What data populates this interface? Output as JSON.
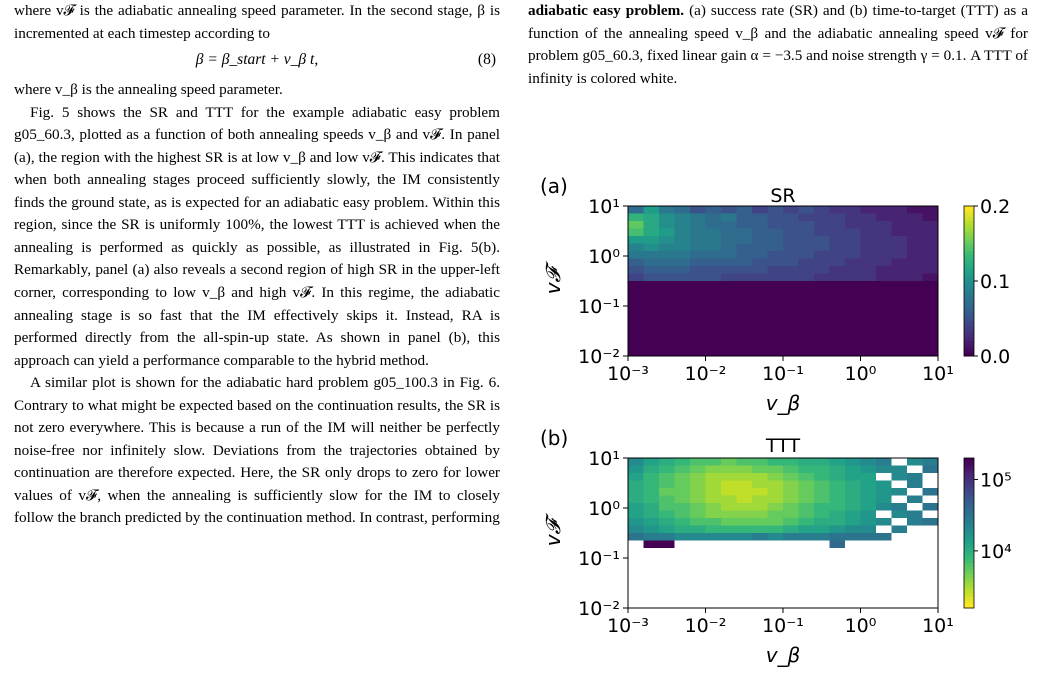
{
  "left_column": {
    "p1": "where v𝓕 is the adiabatic annealing speed parameter. In the second stage, β is incremented at each timestep according to",
    "equation": "β = β_start + v_β t,",
    "equation_number": "(8)",
    "p2": "where v_β is the annealing speed parameter.",
    "p3": "Fig. 5 shows the SR and TTT for the example adiabatic easy problem g05_60.3, plotted as a function of both annealing speeds v_β and v𝓕. In panel (a), the region with the highest SR is at low v_β and low v𝓕. This indicates that when both annealing stages proceed sufficiently slowly, the IM consistently finds the ground state, as is expected for an adiabatic easy problem. Within this region, since the SR is uniformly 100%, the lowest TTT is achieved when the annealing is performed as quickly as possible, as illustrated in Fig. 5(b). Remarkably, panel (a) also reveals a second region of high SR in the upper-left corner, corresponding to low v_β and high v𝓕. In this regime, the adiabatic annealing stage is so fast that the IM effectively skips it. Instead, RA is performed directly from the all-spin-up state. As shown in panel (b), this approach can yield a performance comparable to the hybrid method.",
    "p4": "A similar plot is shown for the adiabatic hard problem g05_100.3 in Fig. 6. Contrary to what might be expected based on the continuation results, the SR is not zero everywhere. This is because a run of the IM will neither be perfectly noise-free nor infinitely slow. Deviations from the trajectories obtained by continuation are therefore expected. Here, the SR only drops to zero for lower values of v𝓕, when the annealing is sufficiently slow for the IM to closely follow the branch predicted by the continuation method. In contrast, performing"
  },
  "caption": {
    "bold_lead": "adiabatic easy problem.",
    "text": " (a) success rate (SR) and (b) time-to-target (TTT) as a function of the annealing speed v_β and the adiabatic annealing speed v𝓕 for problem g05_60.3, fixed linear gain α = −3.5 and noise strength γ = 0.1. A TTT of infinity is colored white."
  },
  "figure": {
    "panel_a": {
      "tag": "(a)",
      "title": "SR",
      "ylabel": "v𝓕",
      "xlabel": "v_β",
      "colorbar_ticks": [
        "0.2",
        "0.1",
        "0.0"
      ]
    },
    "panel_b": {
      "tag": "(b)",
      "title": "TTT",
      "ylabel": "v𝓕",
      "xlabel": "v_β",
      "colorbar_ticks": [
        "10⁵",
        "10⁴"
      ]
    },
    "x_ticks": [
      "10⁻³",
      "10⁻²",
      "10⁻¹",
      "10⁰",
      "10¹"
    ],
    "y_ticks": [
      "10¹",
      "10⁰",
      "10⁻¹",
      "10⁻²"
    ]
  },
  "chart_data": [
    {
      "type": "heatmap",
      "title": "SR",
      "xlabel": "v_β",
      "ylabel": "v𝓕",
      "x_scale": "log",
      "y_scale": "log",
      "xlim": [
        0.001,
        10
      ],
      "ylim": [
        0.01,
        10
      ],
      "x_ticks": [
        0.001,
        0.01,
        0.1,
        1,
        10
      ],
      "y_ticks": [
        0.01,
        0.1,
        1,
        10
      ],
      "colorscale": "viridis",
      "color_range": [
        0,
        0.2
      ],
      "grid_size": [
        20,
        20
      ],
      "rows_top_to_bottom": [
        [
          0.07,
          0.11,
          0.08,
          0.07,
          0.05,
          0.06,
          0.05,
          0.06,
          0.04,
          0.05,
          0.04,
          0.05,
          0.04,
          0.03,
          0.03,
          0.02,
          0.02,
          0.02,
          0.01,
          0.01
        ],
        [
          0.13,
          0.12,
          0.1,
          0.09,
          0.08,
          0.07,
          0.08,
          0.06,
          0.06,
          0.05,
          0.05,
          0.04,
          0.04,
          0.04,
          0.03,
          0.03,
          0.02,
          0.02,
          0.02,
          0.01
        ],
        [
          0.15,
          0.12,
          0.1,
          0.09,
          0.08,
          0.07,
          0.07,
          0.06,
          0.06,
          0.05,
          0.05,
          0.05,
          0.04,
          0.04,
          0.03,
          0.03,
          0.03,
          0.02,
          0.02,
          0.02
        ],
        [
          0.14,
          0.12,
          0.11,
          0.09,
          0.08,
          0.08,
          0.07,
          0.07,
          0.06,
          0.06,
          0.05,
          0.05,
          0.04,
          0.04,
          0.04,
          0.03,
          0.03,
          0.02,
          0.02,
          0.02
        ],
        [
          0.11,
          0.11,
          0.1,
          0.09,
          0.08,
          0.08,
          0.07,
          0.07,
          0.06,
          0.06,
          0.05,
          0.05,
          0.05,
          0.04,
          0.04,
          0.03,
          0.03,
          0.03,
          0.02,
          0.02
        ],
        [
          0.09,
          0.1,
          0.09,
          0.09,
          0.08,
          0.08,
          0.07,
          0.06,
          0.06,
          0.06,
          0.05,
          0.05,
          0.05,
          0.04,
          0.04,
          0.03,
          0.03,
          0.03,
          0.02,
          0.02
        ],
        [
          0.08,
          0.08,
          0.08,
          0.08,
          0.07,
          0.07,
          0.07,
          0.06,
          0.06,
          0.05,
          0.05,
          0.05,
          0.04,
          0.04,
          0.04,
          0.03,
          0.03,
          0.03,
          0.02,
          0.02
        ],
        [
          0.06,
          0.07,
          0.07,
          0.07,
          0.06,
          0.06,
          0.06,
          0.06,
          0.05,
          0.05,
          0.05,
          0.04,
          0.04,
          0.04,
          0.03,
          0.03,
          0.03,
          0.02,
          0.02,
          0.02
        ],
        [
          0.05,
          0.06,
          0.06,
          0.06,
          0.05,
          0.05,
          0.05,
          0.05,
          0.05,
          0.04,
          0.04,
          0.04,
          0.04,
          0.03,
          0.03,
          0.03,
          0.02,
          0.02,
          0.02,
          0.02
        ],
        [
          0.04,
          0.05,
          0.05,
          0.05,
          0.05,
          0.05,
          0.04,
          0.04,
          0.04,
          0.04,
          0.04,
          0.04,
          0.03,
          0.03,
          0.03,
          0.03,
          0.02,
          0.02,
          0.02,
          0.01
        ],
        [
          0,
          0,
          0,
          0,
          0,
          0,
          0,
          0,
          0,
          0,
          0,
          0,
          0,
          0,
          0,
          0,
          0,
          0,
          0,
          0
        ],
        [
          0,
          0,
          0,
          0,
          0,
          0,
          0,
          0,
          0,
          0,
          0,
          0,
          0,
          0,
          0,
          0,
          0,
          0,
          0,
          0
        ],
        [
          0,
          0,
          0,
          0,
          0,
          0,
          0,
          0,
          0,
          0,
          0,
          0,
          0,
          0,
          0,
          0,
          0,
          0,
          0,
          0
        ],
        [
          0,
          0,
          0,
          0,
          0,
          0,
          0,
          0,
          0,
          0,
          0,
          0,
          0,
          0,
          0,
          0,
          0,
          0,
          0,
          0
        ],
        [
          0,
          0,
          0,
          0,
          0,
          0,
          0,
          0,
          0,
          0,
          0,
          0,
          0,
          0,
          0,
          0,
          0,
          0,
          0,
          0
        ],
        [
          0,
          0,
          0,
          0,
          0,
          0,
          0,
          0,
          0,
          0,
          0,
          0,
          0,
          0,
          0,
          0,
          0,
          0,
          0,
          0
        ],
        [
          0,
          0,
          0,
          0,
          0,
          0,
          0,
          0,
          0,
          0,
          0,
          0,
          0,
          0,
          0,
          0,
          0,
          0,
          0,
          0
        ],
        [
          0,
          0,
          0,
          0,
          0,
          0,
          0,
          0,
          0,
          0,
          0,
          0,
          0,
          0,
          0,
          0,
          0,
          0,
          0,
          0
        ],
        [
          0,
          0,
          0,
          0,
          0,
          0,
          0,
          0,
          0,
          0,
          0,
          0,
          0,
          0,
          0,
          0,
          0,
          0,
          0,
          0
        ],
        [
          0,
          0,
          0,
          0,
          0,
          0,
          0,
          0,
          0,
          0,
          0,
          0,
          0,
          0,
          0,
          0,
          0,
          0,
          0,
          0
        ]
      ]
    },
    {
      "type": "heatmap",
      "title": "TTT",
      "xlabel": "v_β",
      "ylabel": "v𝓕",
      "x_scale": "log",
      "y_scale": "log",
      "color_scale": "log",
      "xlim": [
        0.001,
        10
      ],
      "ylim": [
        0.01,
        10
      ],
      "x_ticks": [
        0.001,
        0.01,
        0.1,
        1,
        10
      ],
      "y_ticks": [
        0.01,
        0.1,
        1,
        10
      ],
      "colorscale": "viridis_r",
      "color_range_log10": [
        3.2,
        5.3
      ],
      "colorbar_ticks": [
        10000,
        100000
      ],
      "grid_size": [
        20,
        20
      ],
      "note": "null = infinity (white)",
      "log10_rows_top_to_bottom": [
        [
          4.3,
          4.1,
          4.0,
          3.9,
          3.8,
          3.8,
          3.7,
          3.8,
          3.8,
          3.9,
          3.9,
          4.0,
          4.0,
          4.1,
          4.2,
          4.3,
          4.4,
          null,
          4.3,
          4.4
        ],
        [
          4.2,
          4.0,
          3.9,
          3.8,
          3.7,
          3.6,
          3.6,
          3.6,
          3.7,
          3.7,
          3.8,
          3.9,
          3.9,
          4.0,
          4.1,
          4.2,
          4.3,
          4.3,
          null,
          4.5
        ],
        [
          4.1,
          3.9,
          3.8,
          3.7,
          3.6,
          3.5,
          3.5,
          3.5,
          3.5,
          3.6,
          3.7,
          3.8,
          3.9,
          4.0,
          4.1,
          4.1,
          null,
          4.3,
          4.4,
          null
        ],
        [
          4.0,
          3.9,
          3.8,
          3.7,
          3.6,
          3.5,
          3.4,
          3.4,
          3.5,
          3.5,
          3.6,
          3.7,
          3.8,
          3.9,
          4.0,
          4.1,
          4.2,
          null,
          4.4,
          null
        ],
        [
          4.0,
          3.9,
          3.7,
          3.7,
          3.6,
          3.5,
          3.4,
          3.4,
          3.4,
          3.5,
          3.6,
          3.7,
          3.8,
          3.9,
          4.0,
          4.1,
          4.2,
          4.3,
          null,
          4.5
        ],
        [
          4.0,
          3.9,
          3.8,
          3.7,
          3.6,
          3.5,
          3.5,
          3.4,
          3.5,
          3.5,
          3.6,
          3.7,
          3.8,
          3.9,
          4.0,
          4.1,
          4.2,
          null,
          4.4,
          null
        ],
        [
          4.1,
          4.0,
          3.8,
          3.8,
          3.7,
          3.6,
          3.5,
          3.5,
          3.5,
          3.6,
          3.7,
          3.8,
          3.9,
          3.9,
          4.0,
          4.1,
          4.3,
          4.4,
          null,
          4.5
        ],
        [
          4.1,
          4.0,
          3.9,
          3.8,
          3.7,
          3.6,
          3.6,
          3.6,
          3.6,
          3.7,
          3.7,
          3.8,
          3.9,
          4.0,
          4.1,
          4.2,
          null,
          4.3,
          4.4,
          null
        ],
        [
          4.2,
          4.1,
          4.0,
          3.9,
          3.8,
          3.8,
          3.7,
          3.7,
          3.7,
          3.7,
          3.8,
          3.9,
          4.0,
          4.0,
          4.1,
          4.2,
          4.3,
          null,
          4.4,
          4.5
        ],
        [
          4.3,
          4.2,
          4.1,
          4.0,
          4.0,
          3.9,
          3.9,
          3.9,
          3.9,
          3.9,
          4.0,
          4.1,
          4.1,
          4.2,
          4.3,
          4.3,
          null,
          4.4,
          null,
          null
        ],
        [
          4.5,
          4.4,
          4.4,
          4.3,
          4.3,
          4.3,
          4.3,
          4.3,
          4.4,
          4.3,
          4.4,
          4.4,
          4.4,
          4.5,
          4.5,
          4.5,
          4.5,
          null,
          null,
          null
        ],
        [
          null,
          5.3,
          5.3,
          null,
          null,
          null,
          null,
          null,
          null,
          null,
          null,
          null,
          null,
          4.6,
          null,
          null,
          null,
          null,
          null,
          null
        ],
        [
          null,
          null,
          null,
          null,
          null,
          null,
          null,
          null,
          null,
          null,
          null,
          null,
          null,
          null,
          null,
          null,
          null,
          null,
          null,
          null
        ],
        [
          null,
          null,
          null,
          null,
          null,
          null,
          null,
          null,
          null,
          null,
          null,
          null,
          null,
          null,
          null,
          null,
          null,
          null,
          null,
          null
        ],
        [
          null,
          null,
          null,
          null,
          null,
          null,
          null,
          null,
          null,
          null,
          null,
          null,
          null,
          null,
          null,
          null,
          null,
          null,
          null,
          null
        ],
        [
          null,
          null,
          null,
          null,
          null,
          null,
          null,
          null,
          null,
          null,
          null,
          null,
          null,
          null,
          null,
          null,
          null,
          null,
          null,
          null
        ],
        [
          null,
          null,
          null,
          null,
          null,
          null,
          null,
          null,
          null,
          null,
          null,
          null,
          null,
          null,
          null,
          null,
          null,
          null,
          null,
          null
        ],
        [
          null,
          null,
          null,
          null,
          null,
          null,
          null,
          null,
          null,
          null,
          null,
          null,
          null,
          null,
          null,
          null,
          null,
          null,
          null,
          null
        ],
        [
          null,
          null,
          null,
          null,
          null,
          null,
          null,
          null,
          null,
          null,
          null,
          null,
          null,
          null,
          null,
          null,
          null,
          null,
          null,
          null
        ],
        [
          null,
          null,
          null,
          null,
          null,
          null,
          null,
          null,
          null,
          null,
          null,
          null,
          null,
          null,
          null,
          null,
          null,
          null,
          null,
          null
        ]
      ]
    }
  ]
}
